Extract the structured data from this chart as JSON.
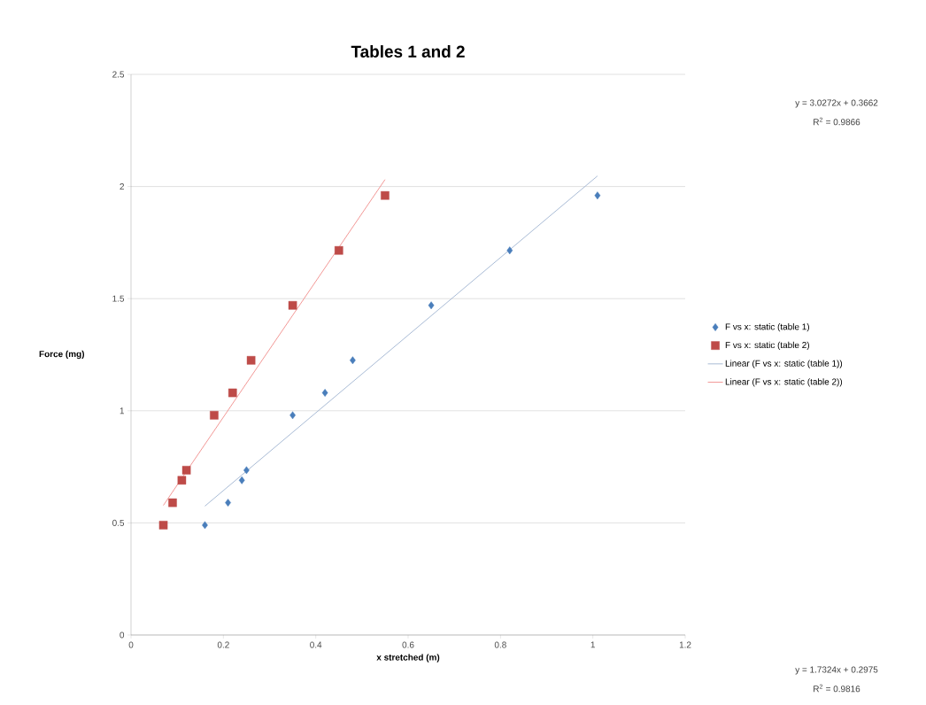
{
  "chart_data": {
    "type": "scatter",
    "title": "Tables 1 and 2",
    "xlabel": "x stretched (m)",
    "ylabel": "Force (mg)",
    "xlim": [
      0,
      1.2
    ],
    "xticks": [
      0,
      0.2,
      0.4,
      0.6,
      0.8,
      1,
      1.2
    ],
    "ylim": [
      0,
      2.5
    ],
    "yticks": [
      0,
      0.5,
      1,
      1.5,
      2,
      2.5
    ],
    "grid": "y",
    "legend": "right",
    "annotations": [
      "y = 3.0272x + 0.3662",
      "R$^{2}$ = 0.9866",
      "y = 1.7324x + 0.2975",
      "R$^{2}$ = 0.9816"
    ],
    "series": [
      {
        "name": "F vs x: static (table 1)",
        "marker": "diamond",
        "color": "#4a7ebb",
        "x": [
          0.16,
          0.21,
          0.24,
          0.25,
          0.35,
          0.42,
          0.48,
          0.65,
          0.82,
          1.01
        ],
        "values": [
          0.49,
          0.59,
          0.69,
          0.735,
          0.98,
          1.08,
          1.225,
          1.47,
          1.715,
          1.96
        ]
      },
      {
        "name": "F vs x: static (table 2)",
        "marker": "square",
        "color": "#be4b48",
        "x": [
          0.07,
          0.09,
          0.11,
          0.12,
          0.18,
          0.22,
          0.26,
          0.35,
          0.45,
          0.55
        ],
        "values": [
          0.49,
          0.59,
          0.69,
          0.735,
          0.98,
          1.08,
          1.225,
          1.47,
          1.715,
          1.96
        ]
      },
      {
        "name": "Linear (F vs x: static (table 1))",
        "type": "line",
        "line_style": "solid",
        "color": "#9fb3d0",
        "x": [
          0.16,
          1.01
        ],
        "values": [
          0.575,
          2.047
        ]
      },
      {
        "name": "Linear (F vs x: static (table 2))",
        "type": "line",
        "line_style": "solid",
        "color": "#f08c8a",
        "x": [
          0.07,
          0.55
        ],
        "values": [
          0.578,
          2.031
        ]
      }
    ]
  }
}
